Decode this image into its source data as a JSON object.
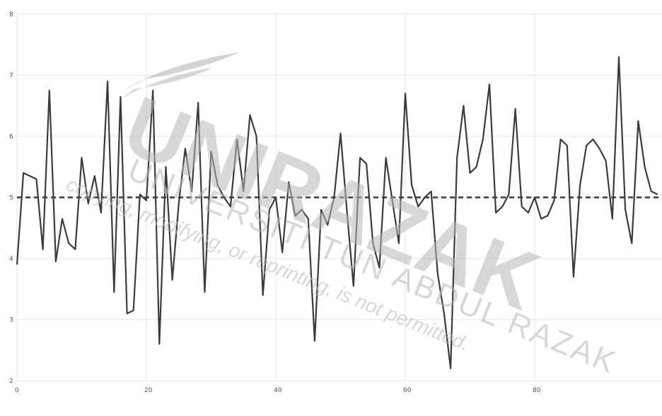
{
  "chart_data": {
    "type": "line",
    "title": "",
    "xlabel": "",
    "ylabel": "",
    "xlim": [
      0,
      99
    ],
    "ylim": [
      2,
      8
    ],
    "xticks": [
      0,
      20,
      40,
      60,
      80
    ],
    "yticks": [
      2,
      3,
      4,
      5,
      6,
      7,
      8
    ],
    "grid": true,
    "reference_line": {
      "y": 5,
      "style": "dashed"
    },
    "series": [
      {
        "x": [
          0,
          1,
          2,
          3,
          4,
          5,
          6,
          7,
          8,
          9,
          10,
          11,
          12,
          13,
          14,
          15,
          16,
          17,
          18,
          19,
          20,
          21,
          22,
          23,
          24,
          25,
          26,
          27,
          28,
          29,
          30,
          31,
          32,
          33,
          34,
          35,
          36,
          37,
          38,
          39,
          40,
          41,
          42,
          43,
          44,
          45,
          46,
          47,
          48,
          49,
          50,
          51,
          52,
          53,
          54,
          55,
          56,
          57,
          58,
          59,
          60,
          61,
          62,
          63,
          64,
          65,
          66,
          67,
          68,
          69,
          70,
          71,
          72,
          73,
          74,
          75,
          76,
          77,
          78,
          79,
          80,
          81,
          82,
          83,
          84,
          85,
          86,
          87,
          88,
          89,
          90,
          91,
          92,
          93,
          94,
          95,
          96,
          97,
          98,
          99
        ],
        "values": [
          3.9,
          5.4,
          5.35,
          5.3,
          4.15,
          6.75,
          3.95,
          4.65,
          4.25,
          4.15,
          5.65,
          4.9,
          5.35,
          4.75,
          6.9,
          3.45,
          6.65,
          3.1,
          3.15,
          5.05,
          4.95,
          6.75,
          2.6,
          5.5,
          3.65,
          4.9,
          5.8,
          5.1,
          6.55,
          3.45,
          5.75,
          5.2,
          5.0,
          4.85,
          5.95,
          5.1,
          6.35,
          6.0,
          3.4,
          4.8,
          5.0,
          4.1,
          5.25,
          4.7,
          4.8,
          4.65,
          2.65,
          4.8,
          4.55,
          5.0,
          6.05,
          4.75,
          3.55,
          5.65,
          5.55,
          4.25,
          3.85,
          5.65,
          4.95,
          4.25,
          6.7,
          5.2,
          4.85,
          5.0,
          5.1,
          3.75,
          3.1,
          2.2,
          5.65,
          6.5,
          5.4,
          5.5,
          5.95,
          6.85,
          4.75,
          4.85,
          5.05,
          6.45,
          4.85,
          4.75,
          5.0,
          4.65,
          4.7,
          4.95,
          5.95,
          5.85,
          3.7,
          5.2,
          5.85,
          5.95,
          5.8,
          5.6,
          4.65,
          7.3,
          4.8,
          4.25,
          6.25,
          5.5,
          5.1,
          5.05
        ]
      }
    ]
  },
  "watermark": {
    "logo_text": "UNIRAZAK",
    "university_line": "UNIVERSITI TUN ABDUL RAZAK",
    "copy_notice": "copying, modifying, or reprinting, is not permitted."
  }
}
